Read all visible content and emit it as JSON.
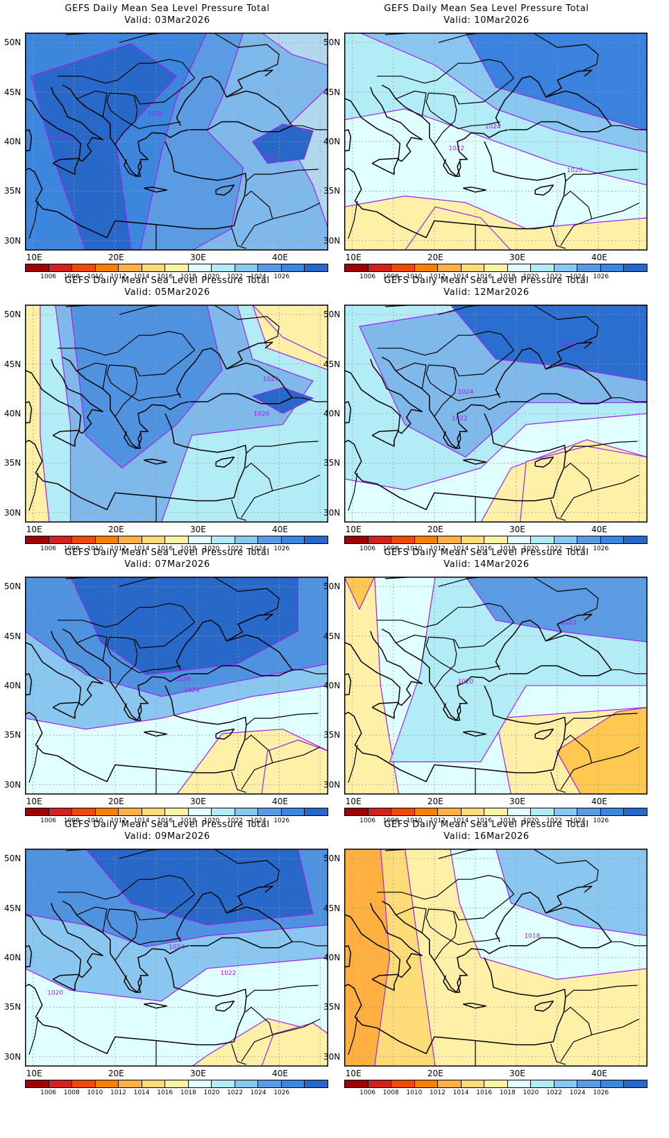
{
  "panels": [
    {
      "title": "GEFS Daily Mean Sea Level Pressure Total",
      "valid": "Valid: 03Mar2026",
      "colors": [
        "#b2d8f0",
        "#7fb8ea",
        "#5a9be3",
        "#3d86de",
        "#2768c9"
      ],
      "contour_labels": [
        "1026",
        "1026",
        "1024"
      ]
    },
    {
      "title": "GEFS Daily Mean Sea Level Pressure Total",
      "valid": "Valid: 10Mar2026",
      "colors": [
        "#fff0a8",
        "#e0ffff",
        "#b2ecf7",
        "#8ac7f0",
        "#3a82dd"
      ],
      "contour_labels": [
        "1024",
        "1022",
        "1020"
      ]
    },
    {
      "title": "GEFS Daily Mean Sea Level Pressure Total",
      "valid": "Valid: 05Mar2026",
      "colors": [
        "#fff0a8",
        "#b2ecf7",
        "#7fb8ea",
        "#4f92e0",
        "#2768c9"
      ],
      "contour_labels": [
        "1024",
        "1026"
      ]
    },
    {
      "title": "GEFS Daily Mean Sea Level Pressure Total",
      "valid": "Valid: 12Mar2026",
      "colors": [
        "#fff0a8",
        "#e0ffff",
        "#b2ecf7",
        "#7fb8ea",
        "#2a6fd0"
      ],
      "contour_labels": [
        "1026",
        "1024",
        "1022"
      ]
    },
    {
      "title": "GEFS Daily Mean Sea Level Pressure Total",
      "valid": "Valid: 07Mar2026",
      "colors": [
        "#fff0a8",
        "#e0ffff",
        "#8ac7f0",
        "#4f92e0",
        "#2768c9"
      ],
      "contour_labels": [
        "1026",
        "1024"
      ]
    },
    {
      "title": "GEFS Daily Mean Sea Level Pressure Total",
      "valid": "Valid: 14Mar2026",
      "colors": [
        "#ffc850",
        "#fff0a8",
        "#e0ffff",
        "#b2ecf7",
        "#5a9be3"
      ],
      "contour_labels": [
        "1022",
        "1020"
      ]
    },
    {
      "title": "GEFS Daily Mean Sea Level Pressure Total",
      "valid": "Valid: 09Mar2026",
      "colors": [
        "#fff0a8",
        "#e0ffff",
        "#8ac7f0",
        "#4f92e0",
        "#2768c9"
      ],
      "contour_labels": [
        "1024",
        "1022",
        "1020"
      ]
    },
    {
      "title": "GEFS Daily Mean Sea Level Pressure Total",
      "valid": "Valid: 16Mar2026",
      "colors": [
        "#ffb040",
        "#ffdc78",
        "#fff0a8",
        "#e0ffff",
        "#8ac7f0"
      ],
      "contour_labels": [
        "1018"
      ]
    }
  ],
  "y_ticks": [
    "50N",
    "45N",
    "40N",
    "35N",
    "30N"
  ],
  "x_ticks": [
    "10E",
    "20E",
    "30E",
    "40E"
  ],
  "colorbar": {
    "colors": [
      "#a00000",
      "#d42020",
      "#f04a0a",
      "#ff7f00",
      "#ffb040",
      "#ffdc78",
      "#fff0a8",
      "#e0ffff",
      "#b2ecf7",
      "#8ac7f0",
      "#5a9be3",
      "#3d86de",
      "#2768c9"
    ],
    "labels": [
      "1006",
      "1008",
      "1010",
      "1012",
      "1014",
      "1016",
      "1018",
      "1020",
      "1022",
      "1024",
      "1026"
    ]
  },
  "contour_color": "#a020f0"
}
